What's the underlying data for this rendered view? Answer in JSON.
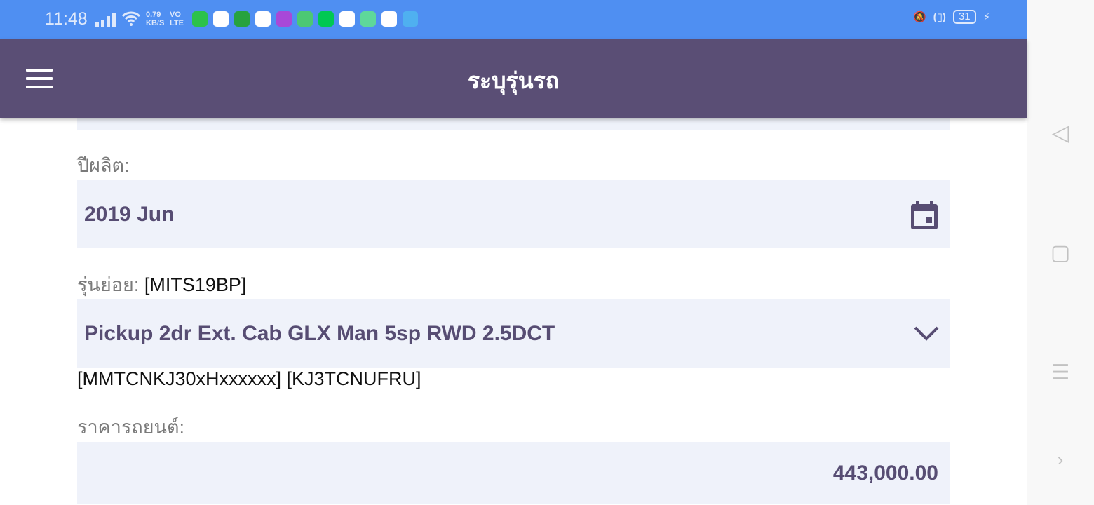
{
  "status_bar": {
    "time": "11:48",
    "speed_value": "0.79",
    "speed_unit": "KB/S",
    "volte_top": "VO",
    "volte_bottom": "LTE",
    "battery": "31",
    "app_icon_colors": [
      "#2cc24a",
      "#ffffff",
      "#27a23e",
      "#ffffff",
      "#a848d8",
      "#4cc874",
      "#00c853",
      "#ffffff",
      "#5ed89a",
      "#ffffff",
      "#4fb0f0"
    ]
  },
  "header": {
    "title": "ระบุรุ่นรถ"
  },
  "form": {
    "year_label": "ปีผลิต:",
    "year_value": "2019 Jun",
    "submodel_label": "รุ่นย่อย:",
    "submodel_code": "[MITS19BP]",
    "submodel_value": "Pickup 2dr Ext. Cab GLX Man 5sp RWD 2.5DCT",
    "codes": "[MMTCNKJ30xHxxxxxx] [KJ3TCNUFRU]",
    "price_label": "ราคารถยนต์:",
    "price_value": "443,000.00"
  },
  "colors": {
    "status_bar": "#4f8ff2",
    "header": "#5a4e75",
    "field_bg": "#eff2fa",
    "field_text": "#574d73"
  }
}
